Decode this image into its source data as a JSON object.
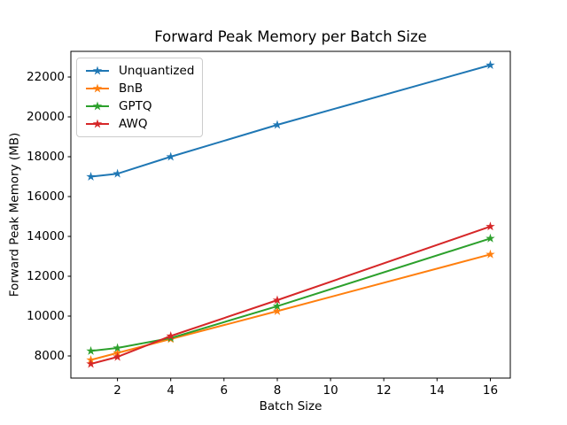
{
  "figure": {
    "background": "#ffffff"
  },
  "chart_data": {
    "type": "line",
    "title": "Forward Peak Memory per Batch Size",
    "xlabel": "Batch Size",
    "ylabel": "Forward Peak Memory (MB)",
    "x": [
      1,
      2,
      4,
      8,
      16
    ],
    "series": [
      {
        "name": "Unquantized",
        "color": "#1f77b4",
        "marker": "star",
        "values": [
          17000,
          17150,
          18000,
          19600,
          22600
        ]
      },
      {
        "name": "BnB",
        "color": "#ff7f0e",
        "marker": "star",
        "values": [
          7800,
          8150,
          8850,
          10250,
          13100
        ]
      },
      {
        "name": "GPTQ",
        "color": "#2ca02c",
        "marker": "star",
        "values": [
          8250,
          8400,
          8900,
          10500,
          13900
        ]
      },
      {
        "name": "AWQ",
        "color": "#d62728",
        "marker": "star",
        "values": [
          7600,
          7950,
          9000,
          10800,
          14500
        ]
      }
    ],
    "xticks": [
      2,
      4,
      6,
      8,
      10,
      12,
      14,
      16
    ],
    "yticks": [
      8000,
      10000,
      12000,
      14000,
      16000,
      18000,
      20000,
      22000
    ],
    "xlim": [
      0.25,
      16.75
    ],
    "ylim": [
      6890,
      23290
    ],
    "grid": false,
    "legend_position": "upper-left",
    "axis_color": "#000000",
    "legend_border_color": "#cccccc"
  }
}
